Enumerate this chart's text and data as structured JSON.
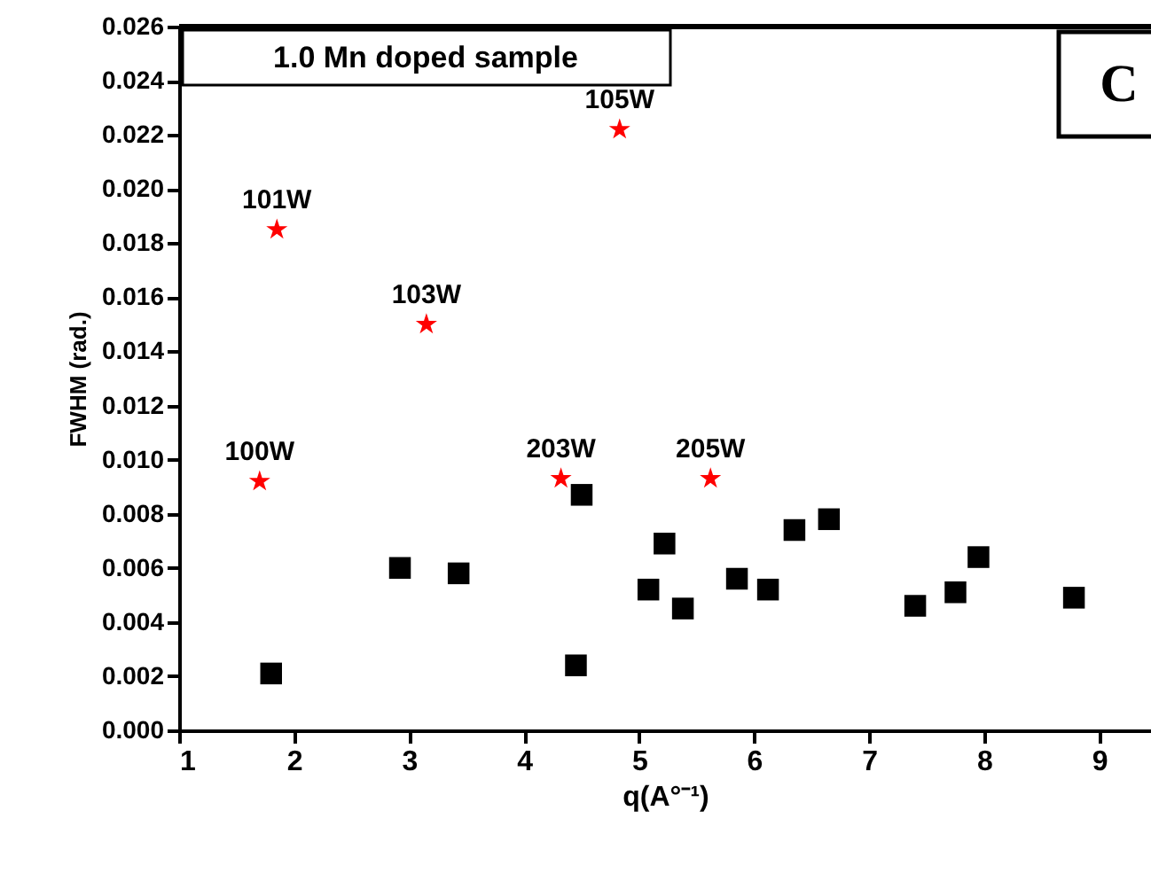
{
  "chart_data": {
    "type": "scatter",
    "xlabel": "q(A°⁻¹)",
    "ylabel": "FWHM (rad.)",
    "xlim": [
      1,
      9.45
    ],
    "xticks": [
      1,
      2,
      3,
      4,
      5,
      6,
      7,
      8,
      9
    ],
    "ylim": [
      0,
      0.026
    ],
    "yticks": [
      {
        "value": 0,
        "label": "0.000"
      },
      {
        "value": 0.002,
        "label": "0.002"
      },
      {
        "value": 0.004,
        "label": "0.004"
      },
      {
        "value": 0.006,
        "label": "0.006"
      },
      {
        "value": 0.008,
        "label": "0.008"
      },
      {
        "value": 0.01,
        "label": "0.010"
      },
      {
        "value": 0.012,
        "label": "0.012"
      },
      {
        "value": 0.014,
        "label": "0.014"
      },
      {
        "value": 0.016,
        "label": "0.016"
      },
      {
        "value": 0.018,
        "label": "0.018"
      },
      {
        "value": 0.02,
        "label": "0.020"
      },
      {
        "value": 0.022,
        "label": "0.022"
      },
      {
        "value": 0.024,
        "label": "0.024"
      },
      {
        "value": 0.026,
        "label": "0.026"
      }
    ],
    "grid": false,
    "series": [
      {
        "color": "#ff0000",
        "marker": "star",
        "x": [
          1.7,
          1.85,
          3.15,
          4.83,
          4.32,
          5.62
        ],
        "values": [
          0.0092,
          0.0185,
          0.015,
          0.0222,
          0.0093,
          0.0093
        ]
      },
      {
        "color": "#000000",
        "marker": "square",
        "x": [
          1.8,
          2.92,
          3.43,
          4.45,
          4.5,
          5.08,
          5.22,
          5.38,
          5.85,
          6.12,
          6.35,
          6.65,
          7.4,
          7.75,
          7.95,
          8.78
        ],
        "values": [
          0.0021,
          0.006,
          0.0058,
          0.0024,
          0.0087,
          0.0052,
          0.0069,
          0.0045,
          0.0056,
          0.0052,
          0.0074,
          0.0078,
          0.0046,
          0.0051,
          0.0064,
          0.0049
        ]
      }
    ],
    "annotations": [
      "1.0 Mn doped sample",
      "C",
      {
        "text": "100W",
        "x": 1.7,
        "y": 0.0092
      },
      {
        "text": "101W",
        "x": 1.85,
        "y": 0.0185
      },
      {
        "text": "103W",
        "x": 3.15,
        "y": 0.015
      },
      {
        "text": "105W",
        "x": 4.83,
        "y": 0.0222
      },
      {
        "text": "203W",
        "x": 4.32,
        "y": 0.0093
      },
      {
        "text": "205W",
        "x": 5.62,
        "y": 0.0093
      }
    ]
  }
}
